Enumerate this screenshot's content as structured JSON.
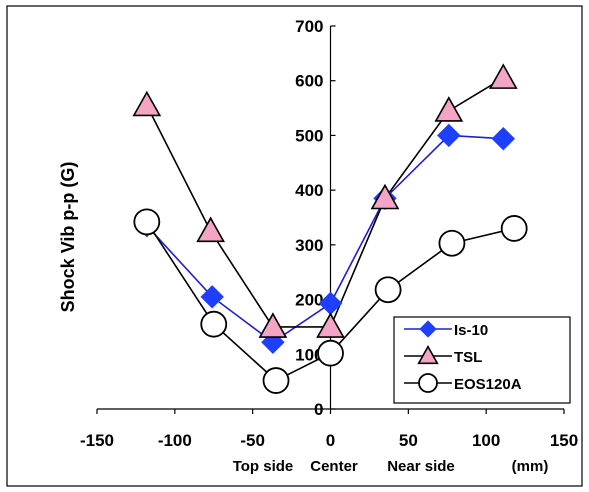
{
  "chart_data": {
    "type": "line",
    "title": "",
    "ylabel": "Shock Vib p-p (G)",
    "xlabel_parts": [
      "Top side",
      "Center",
      "Near side",
      "(mm)"
    ],
    "xlim": [
      -150,
      150
    ],
    "ylim": [
      0,
      700
    ],
    "xticks": [
      -150,
      -100,
      -50,
      0,
      50,
      100,
      150
    ],
    "yticks": [
      0,
      100,
      200,
      300,
      400,
      500,
      600,
      700
    ],
    "grid": false,
    "legend_position": "bottom-right",
    "series": [
      {
        "name": "Is-10",
        "marker": "diamond",
        "line_color": "#1f1fcf",
        "marker_fill": "#1f3fff",
        "marker_stroke": "#1f3fff",
        "points": [
          {
            "x": -118,
            "y": 335
          },
          {
            "x": -76,
            "y": 205
          },
          {
            "x": -37,
            "y": 122
          },
          {
            "x": 0,
            "y": 193
          },
          {
            "x": 35,
            "y": 385
          },
          {
            "x": 76,
            "y": 500
          },
          {
            "x": 111,
            "y": 494
          }
        ]
      },
      {
        "name": "TSL",
        "marker": "triangle",
        "line_color": "#000000",
        "marker_fill": "#f4a4c4",
        "marker_stroke": "#000000",
        "points": [
          {
            "x": -118,
            "y": 555
          },
          {
            "x": -77,
            "y": 325
          },
          {
            "x": -37,
            "y": 150
          },
          {
            "x": 0,
            "y": 150
          },
          {
            "x": 35,
            "y": 385
          },
          {
            "x": 76,
            "y": 545
          },
          {
            "x": 111,
            "y": 605
          }
        ]
      },
      {
        "name": "EOS120A",
        "marker": "circle",
        "line_color": "#000000",
        "marker_fill": "#ffffff",
        "marker_stroke": "#000000",
        "points": [
          {
            "x": -118,
            "y": 342
          },
          {
            "x": -75,
            "y": 155
          },
          {
            "x": -35,
            "y": 52
          },
          {
            "x": 0,
            "y": 102
          },
          {
            "x": 37,
            "y": 218
          },
          {
            "x": 78,
            "y": 303
          },
          {
            "x": 118,
            "y": 330
          }
        ]
      }
    ]
  }
}
